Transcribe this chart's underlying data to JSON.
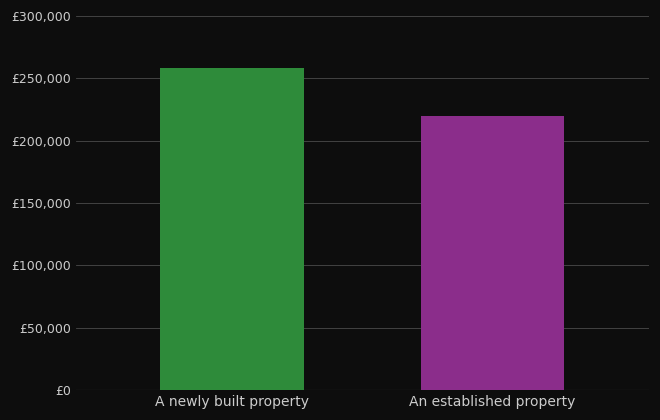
{
  "categories": [
    "A newly built property",
    "An established property"
  ],
  "values": [
    258000,
    220000
  ],
  "bar_colors": [
    "#2e8b3a",
    "#8b2d8b"
  ],
  "background_color": "#0d0d0d",
  "text_color": "#cccccc",
  "grid_color": "#4a4a4a",
  "ylim": [
    0,
    300000
  ],
  "yticks": [
    0,
    50000,
    100000,
    150000,
    200000,
    250000,
    300000
  ],
  "bar_width": 0.55,
  "figsize": [
    6.6,
    4.2
  ],
  "dpi": 100,
  "tick_fontsize": 9,
  "xlabel_fontsize": 10
}
